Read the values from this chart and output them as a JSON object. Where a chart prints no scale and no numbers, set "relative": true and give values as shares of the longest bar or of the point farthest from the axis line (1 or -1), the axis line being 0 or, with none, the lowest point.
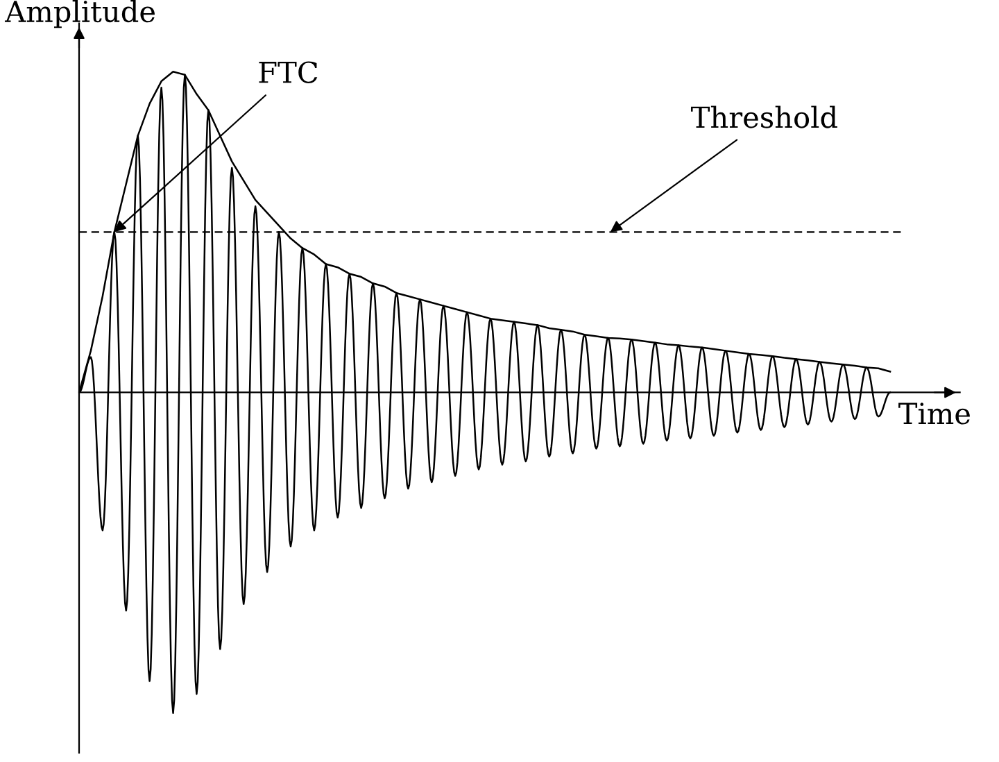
{
  "chart_data": {
    "type": "line",
    "relative": true,
    "xlabel": "Time",
    "ylabel": "Amplitude",
    "marker": "none",
    "line_style": "solid",
    "categories": [
      null,
      null,
      null,
      null,
      null,
      null,
      null,
      null,
      null,
      null,
      null,
      null,
      null,
      null,
      null,
      null,
      null,
      null,
      null,
      null,
      null,
      null,
      null,
      null,
      null,
      null,
      null,
      null,
      null,
      null,
      null,
      null,
      null,
      null,
      null,
      null,
      null,
      null,
      null,
      null,
      null,
      null,
      null,
      null,
      null,
      null,
      null,
      null,
      null,
      null,
      null,
      null,
      null,
      null,
      null,
      null,
      null,
      null,
      null,
      null,
      null,
      null,
      null,
      null,
      null,
      null,
      null,
      null,
      null,
      null
    ],
    "series": [
      {
        "color": "#000000",
        "values": [
          0,
          0.11,
          -0.43,
          0.5,
          -0.68,
          0.8,
          -0.9,
          0.95,
          -1.0,
          0.99,
          -0.94,
          0.88,
          -0.8,
          0.7,
          -0.66,
          0.58,
          -0.56,
          0.5,
          -0.48,
          0.45,
          -0.43,
          0.4,
          -0.39,
          0.37,
          -0.36,
          0.34,
          -0.33,
          0.31,
          -0.3,
          0.29,
          -0.28,
          0.27,
          -0.26,
          0.25,
          -0.24,
          0.23,
          -0.225,
          0.22,
          -0.215,
          0.21,
          -0.2,
          0.195,
          -0.19,
          0.18,
          -0.175,
          0.17,
          -0.168,
          0.165,
          -0.16,
          0.155,
          -0.15,
          0.147,
          -0.143,
          0.14,
          -0.135,
          0.13,
          -0.125,
          0.12,
          -0.117,
          0.113,
          -0.108,
          0.104,
          -0.1,
          0.095,
          -0.091,
          0.087,
          -0.083,
          0.078,
          -0.075,
          0
        ]
      },
      {
        "color": "#000000",
        "values": [
          0,
          0.13,
          0.3,
          0.5,
          0.65,
          0.8,
          0.9,
          0.97,
          1.0,
          0.99,
          0.93,
          0.88,
          0.8,
          0.72,
          0.66,
          0.6,
          0.56,
          0.52,
          0.48,
          0.45,
          0.43,
          0.4,
          0.39,
          0.37,
          0.36,
          0.34,
          0.33,
          0.31,
          0.3,
          0.29,
          0.28,
          0.27,
          0.26,
          0.25,
          0.24,
          0.23,
          0.225,
          0.22,
          0.215,
          0.21,
          0.2,
          0.195,
          0.19,
          0.18,
          0.175,
          0.17,
          0.168,
          0.165,
          0.16,
          0.155,
          0.15,
          0.147,
          0.143,
          0.14,
          0.135,
          0.13,
          0.125,
          0.12,
          0.117,
          0.113,
          0.108,
          0.104,
          0.1,
          0.095,
          0.091,
          0.087,
          0.083,
          0.078,
          0.075,
          0.065
        ]
      }
    ],
    "ref_lines": [
      {
        "axis": "y",
        "value": 0.5,
        "color": "#000000",
        "line_style": "dashed"
      }
    ],
    "annotations": [
      "FTC",
      "Threshold"
    ]
  }
}
